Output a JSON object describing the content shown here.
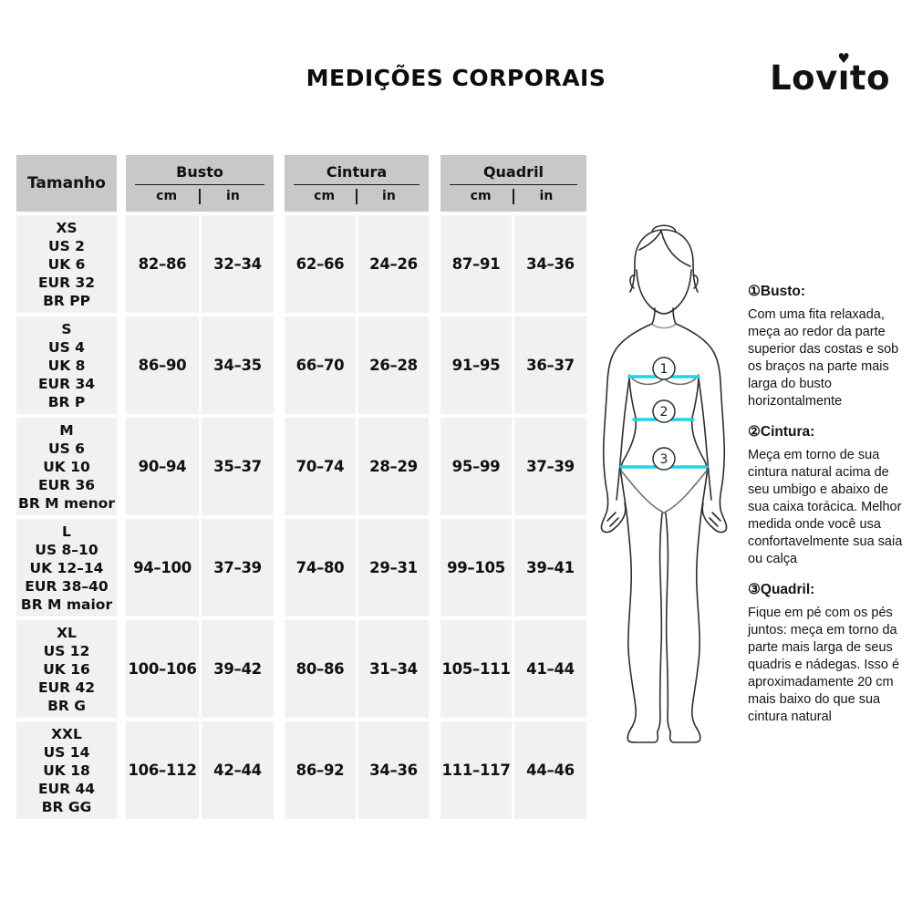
{
  "header": {
    "title": "MEDIÇÕES CORPORAIS",
    "logo": {
      "full_name": "Lovito",
      "pre": "Lov",
      "i": "ı",
      "heart": "♥",
      "post": "to"
    }
  },
  "table": {
    "size_column_header": "Tamanho",
    "groups": [
      {
        "label": "Busto",
        "units": [
          "cm",
          "in"
        ]
      },
      {
        "label": "Cintura",
        "units": [
          "cm",
          "in"
        ]
      },
      {
        "label": "Quadril",
        "units": [
          "cm",
          "in"
        ]
      }
    ],
    "rows": [
      {
        "sizes": [
          "XS",
          "US 2",
          "UK 6",
          "EUR 32",
          "BR PP"
        ],
        "values": [
          "82–86",
          "32–34",
          "62–66",
          "24–26",
          "87–91",
          "34–36"
        ]
      },
      {
        "sizes": [
          "S",
          "US 4",
          "UK 8",
          "EUR 34",
          "BR P"
        ],
        "values": [
          "86–90",
          "34–35",
          "66–70",
          "26–28",
          "91–95",
          "36–37"
        ]
      },
      {
        "sizes": [
          "M",
          "US 6",
          "UK 10",
          "EUR 36",
          "BR M menor"
        ],
        "values": [
          "90–94",
          "35–37",
          "70–74",
          "28–29",
          "95–99",
          "37–39"
        ]
      },
      {
        "sizes": [
          "L",
          "US 8–10",
          "UK 12–14",
          "EUR 38–40",
          "BR M maior"
        ],
        "values": [
          "94–100",
          "37–39",
          "74–80",
          "29–31",
          "99–105",
          "39–41"
        ]
      },
      {
        "sizes": [
          "XL",
          "US 12",
          "UK 16",
          "EUR 42",
          "BR G"
        ],
        "values": [
          "100–106",
          "39–42",
          "80–86",
          "31–34",
          "105–111",
          "41–44"
        ]
      },
      {
        "sizes": [
          "XXL",
          "US 14",
          "UK 18",
          "EUR 44",
          "BR GG"
        ],
        "values": [
          "106–112",
          "42–44",
          "86–92",
          "34–36",
          "111–117",
          "44–46"
        ]
      }
    ]
  },
  "figure": {
    "labels": [
      "1",
      "2",
      "3"
    ]
  },
  "notes": [
    {
      "marker": "①",
      "title": "Busto:",
      "body": "Com uma fita relaxada, meça ao redor da parte superior das costas e sob os braços na parte mais larga do busto horizontalmente"
    },
    {
      "marker": "②",
      "title": "Cintura:",
      "body": "Meça em torno de sua cintura natural acima de seu umbigo e abaixo de sua caixa torácica. Melhor medida onde você usa confortavelmente sua saia ou calça"
    },
    {
      "marker": "③",
      "title": "Quadril:",
      "body": "Fique em pé com os pés juntos: meça em torno da parte mais larga de seus quadris e nádegas. Isso é aproximadamente 20 cm mais baixo do que sua cintura natural"
    }
  ],
  "colors": {
    "accent_cyan": "#1ed5e8",
    "header_gray": "#c8c8c8",
    "cell_gray": "#f1f1f1",
    "text": "#111111"
  }
}
